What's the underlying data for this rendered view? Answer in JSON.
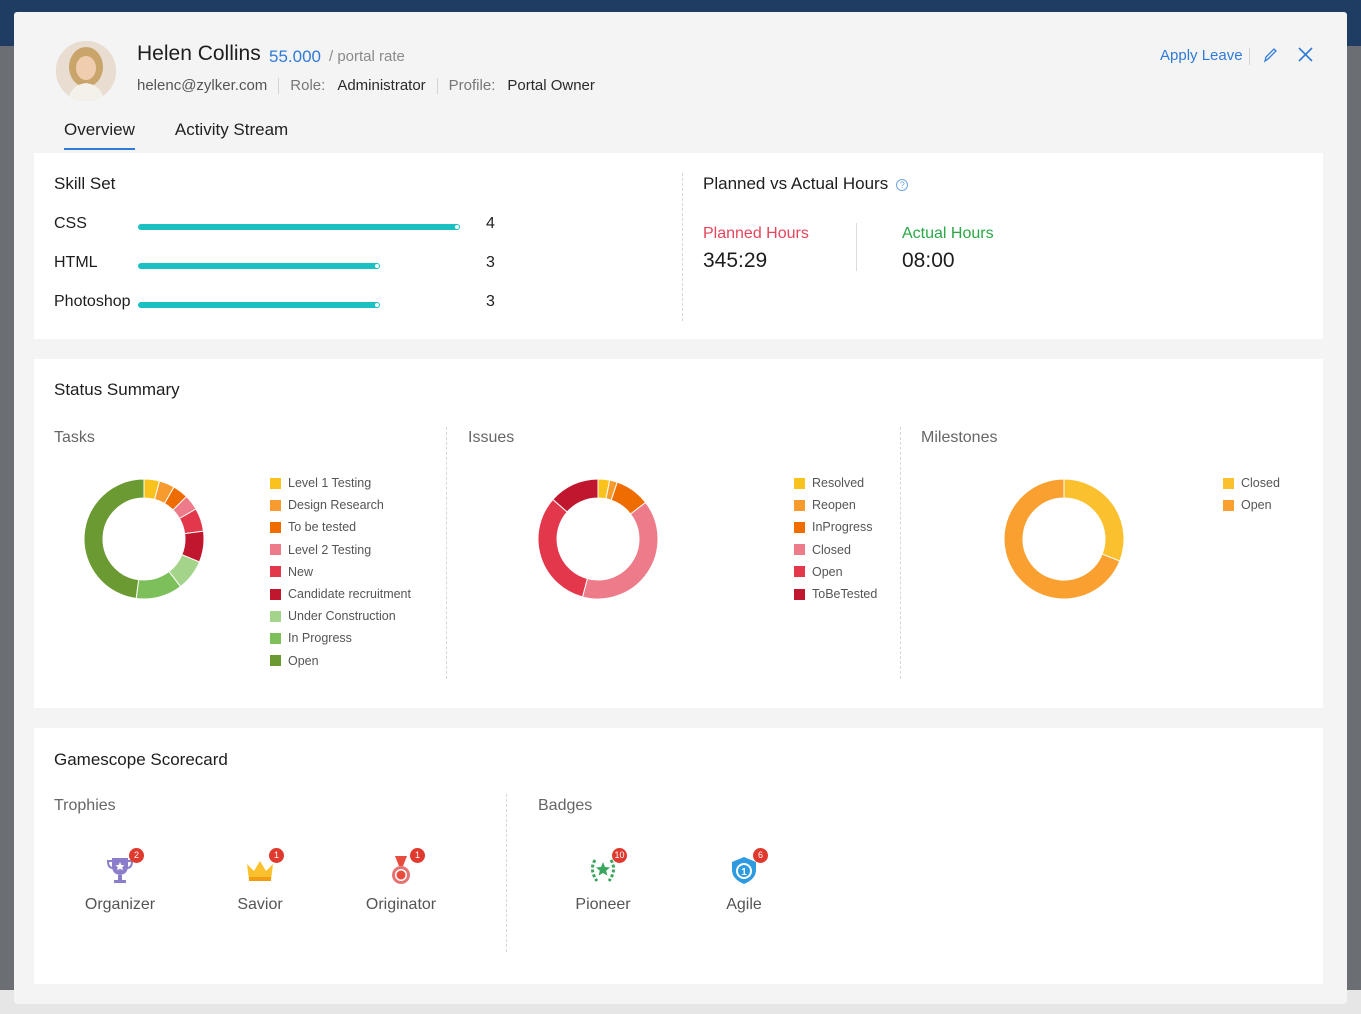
{
  "user": {
    "name": "Helen Collins",
    "rate_value": "55.000",
    "rate_label": "/ portal rate",
    "email": "helenc@zylker.com",
    "role_label": "Role:",
    "role_value": "Administrator",
    "profile_label": "Profile:",
    "profile_value": "Portal Owner"
  },
  "actions": {
    "apply_leave": "Apply Leave",
    "edit_icon": "pencil-icon",
    "close_icon": "close-icon"
  },
  "tabs": [
    {
      "label": "Overview",
      "active": true
    },
    {
      "label": "Activity Stream",
      "active": false
    }
  ],
  "skill_set": {
    "title": "Skill Set",
    "skills": [
      {
        "name": "CSS",
        "level": 4,
        "max": 4
      },
      {
        "name": "HTML",
        "level": 3,
        "max": 4
      },
      {
        "name": "Photoshop",
        "level": 3,
        "max": 4
      }
    ],
    "bar_color": "#1bc0c2"
  },
  "hours": {
    "title": "Planned vs Actual Hours",
    "planned_label": "Planned Hours",
    "planned_value": "345:29",
    "actual_label": "Actual Hours",
    "actual_value": "08:00",
    "planned_color": "#e8445a",
    "actual_color": "#2aa745"
  },
  "status_summary": {
    "title": "Status Summary",
    "tasks": {
      "title": "Tasks",
      "legend": [
        {
          "label": "Level 1 Testing",
          "color": "#f9c21c"
        },
        {
          "label": "Design Research",
          "color": "#f79b2e"
        },
        {
          "label": "To be tested",
          "color": "#ef6c00"
        },
        {
          "label": "Level 2 Testing",
          "color": "#ee7b89"
        },
        {
          "label": "New",
          "color": "#e3374c"
        },
        {
          "label": "Candidate recruitment",
          "color": "#c0162e"
        },
        {
          "label": "Under Construction",
          "color": "#a3d48a"
        },
        {
          "label": "In Progress",
          "color": "#7dbf5a"
        },
        {
          "label": "Open",
          "color": "#6a9a31"
        }
      ]
    },
    "issues": {
      "title": "Issues",
      "legend": [
        {
          "label": "Resolved",
          "color": "#f9c21c"
        },
        {
          "label": "Reopen",
          "color": "#f79b2e"
        },
        {
          "label": "InProgress",
          "color": "#ef6c00"
        },
        {
          "label": "Closed",
          "color": "#ee7b89"
        },
        {
          "label": "Open",
          "color": "#e3374c"
        },
        {
          "label": "ToBeTested",
          "color": "#c0162e"
        }
      ]
    },
    "milestones": {
      "title": "Milestones",
      "legend": [
        {
          "label": "Closed",
          "color": "#fbc02d"
        },
        {
          "label": "Open",
          "color": "#f9a030"
        }
      ]
    }
  },
  "chart_data": [
    {
      "type": "pie",
      "title": "Tasks",
      "categories": [
        "Level 1 Testing",
        "Design Research",
        "To be tested",
        "Level 2 Testing",
        "New",
        "Candidate recruitment",
        "Under Construction",
        "In Progress",
        "Open"
      ],
      "values": [
        1,
        1,
        1,
        1,
        1.5,
        2,
        2,
        3,
        11.5
      ],
      "colors": [
        "#f9c21c",
        "#f79b2e",
        "#ef6c00",
        "#ee7b89",
        "#e3374c",
        "#c0162e",
        "#a3d48a",
        "#7dbf5a",
        "#6a9a31"
      ]
    },
    {
      "type": "pie",
      "title": "Issues",
      "categories": [
        "Resolved",
        "Reopen",
        "InProgress",
        "Closed",
        "Open",
        "ToBeTested"
      ],
      "values": [
        3,
        2,
        9,
        38,
        31,
        13
      ],
      "colors": [
        "#f9c21c",
        "#f79b2e",
        "#ef6c00",
        "#ee7b89",
        "#e3374c",
        "#c0162e"
      ]
    },
    {
      "type": "pie",
      "title": "Milestones",
      "categories": [
        "Closed",
        "Open"
      ],
      "values": [
        31,
        69
      ],
      "colors": [
        "#fbc02d",
        "#f9a030"
      ]
    }
  ],
  "scorecard": {
    "title": "Gamescope Scorecard",
    "trophies_title": "Trophies",
    "trophies": [
      {
        "label": "Organizer",
        "count": "2",
        "icon": "trophy-cup-icon"
      },
      {
        "label": "Savior",
        "count": "1",
        "icon": "crown-icon"
      },
      {
        "label": "Originator",
        "count": "1",
        "icon": "medal-icon"
      }
    ],
    "badges_title": "Badges",
    "badges": [
      {
        "label": "Pioneer",
        "count": "10",
        "icon": "laurel-star-icon"
      },
      {
        "label": "Agile",
        "count": "6",
        "icon": "shield-icon"
      }
    ]
  }
}
